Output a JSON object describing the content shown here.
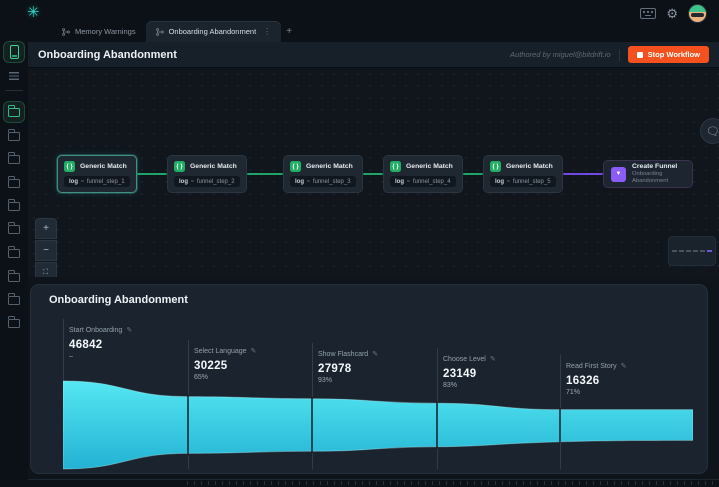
{
  "topbar": {
    "tabs": [
      {
        "label": "Memory Warnings",
        "active": false
      },
      {
        "label": "Onboarding Abandonment",
        "active": true
      }
    ],
    "new_tab_label": "+"
  },
  "header": {
    "title": "Onboarding Abandonment",
    "authored_by": "Authored by miguel@bitdrift.io",
    "stop_button_label": "Stop Workflow"
  },
  "canvas": {
    "nodes": [
      {
        "title": "Generic Match",
        "icon": "braces-icon",
        "key": "log",
        "op": "=",
        "value": "funnel_step_1",
        "selected": true
      },
      {
        "title": "Generic Match",
        "icon": "braces-icon",
        "key": "log",
        "op": "=",
        "value": "funnel_step_2",
        "selected": false
      },
      {
        "title": "Generic Match",
        "icon": "braces-icon",
        "key": "log",
        "op": "=",
        "value": "funnel_step_3",
        "selected": false
      },
      {
        "title": "Generic Match",
        "icon": "braces-icon",
        "key": "log",
        "op": "=",
        "value": "funnel_step_4",
        "selected": false
      },
      {
        "title": "Generic Match",
        "icon": "braces-icon",
        "key": "log",
        "op": "=",
        "value": "funnel_step_5",
        "selected": false
      }
    ],
    "create_node": {
      "title": "Create Funnel",
      "subtitle": "Onboarding Abandonment",
      "icon": "funnel-icon"
    },
    "zoom_controls": {
      "zoom_in": "+",
      "zoom_out": "−",
      "fit_view": "fit-view-icon"
    }
  },
  "chart_data": {
    "type": "area",
    "subtype": "horizontal-funnel",
    "title": "Onboarding Abandonment",
    "steps": [
      {
        "label": "Start Onboarding",
        "value": 46842,
        "value_text": "46842",
        "pct": "–"
      },
      {
        "label": "Select Language",
        "value": 30225,
        "value_text": "30225",
        "pct": "65%"
      },
      {
        "label": "Show Flashcard",
        "value": 27978,
        "value_text": "27978",
        "pct": "93%"
      },
      {
        "label": "Choose Level",
        "value": 23149,
        "value_text": "23149",
        "pct": "83%"
      },
      {
        "label": "Read First Story",
        "value": 16326,
        "value_text": "16326",
        "pct": "71%"
      }
    ],
    "legend": "none",
    "grid": "off"
  },
  "colors": {
    "accent_teal": "#2fd6c3",
    "node_green": "#1fae63",
    "edge_green": "#1ea368",
    "edge_purple": "#7048e8",
    "create_purple": "#8b5cf6",
    "stop_orange": "#f4511e",
    "funnel_top": "#55e7f2",
    "funnel_bottom": "#23b2d3"
  },
  "icons": {
    "logo": "bitdrift-logo-icon",
    "top_right": [
      "keyboard-icon",
      "gear-icon",
      "avatar"
    ],
    "rail": [
      "phone-icon",
      "list-icon",
      "folder-icons"
    ]
  }
}
